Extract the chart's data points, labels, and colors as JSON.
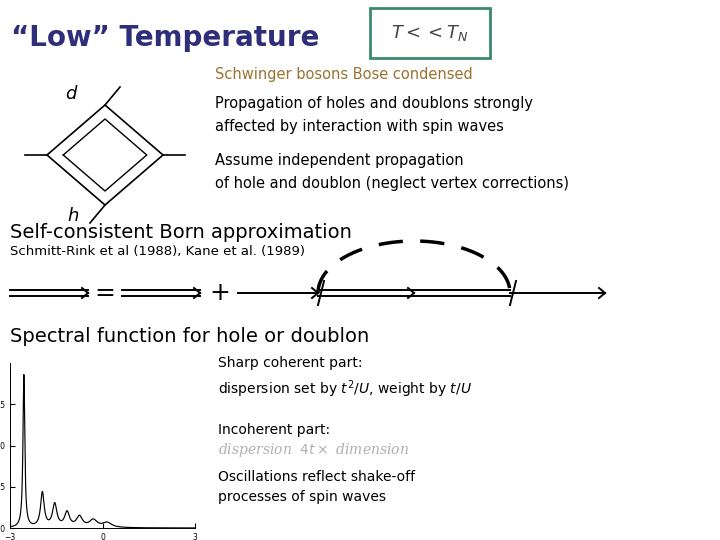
{
  "title": "“Low” Temperature",
  "title_color": "#2e2e7a",
  "title_fontsize": 20,
  "box_formula": "$T << T_N$",
  "box_edge_color": "#3a8a6a",
  "schwinger_text": "Schwinger bosons Bose condensed",
  "schwinger_color": "#9b7230",
  "schwinger_fontsize": 10.5,
  "prop_text": "Propagation of holes and doublons strongly\naffected by interaction with spin waves",
  "assume_text": "Assume independent propagation\nof hole and doublon (neglect vertex corrections)",
  "body_fontsize": 10.5,
  "scba_title": "Self-consistent Born approximation",
  "scba_fontsize": 14,
  "ref_text": "Schmitt-Rink et al (1988), Kane et al. (1989)",
  "ref_fontsize": 9.5,
  "spectral_title": "Spectral function for hole or doublon",
  "spectral_fontsize": 14,
  "sharp_text": "Sharp coherent part:\ndispersion set by $t^2/U$, weight by $t/U$",
  "incoherent_label": "Incoherent part:",
  "incoherent_formula": "dispersion  $4t \\times$ dimension",
  "oscillations_text": "Oscillations reflect shake-off\nprocesses of spin waves",
  "incoherent_color": "#b0b0b0"
}
